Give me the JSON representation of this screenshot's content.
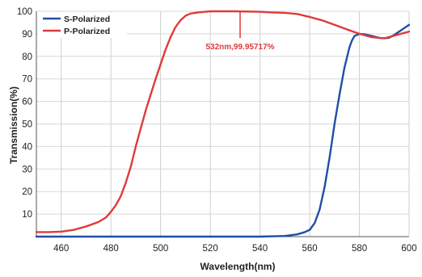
{
  "chart_data": {
    "type": "line",
    "xlabel": "Wavelength(nm)",
    "ylabel": "Transmission(%)",
    "xlim": [
      450,
      600
    ],
    "ylim": [
      0,
      100
    ],
    "x_ticks": [
      460,
      480,
      500,
      520,
      540,
      560,
      580,
      600
    ],
    "y_ticks": [
      10,
      20,
      30,
      40,
      50,
      60,
      70,
      80,
      90,
      100
    ],
    "grid": "vertical-and-horizontal",
    "legend": "top-left",
    "series": [
      {
        "name": "S-Polarized",
        "color": "#1f4fa8",
        "x": [
          450,
          500,
          540,
          550,
          555,
          558,
          560,
          562,
          564,
          566,
          568,
          570,
          572,
          574,
          576,
          577,
          578,
          579,
          580,
          582,
          584,
          586,
          588,
          590,
          592,
          594,
          596,
          598,
          600
        ],
        "y": [
          0,
          0,
          0,
          0.3,
          1,
          2,
          3,
          6,
          12,
          22,
          35,
          50,
          63,
          75,
          84,
          87,
          89,
          89.5,
          90,
          89.8,
          89.3,
          88.8,
          88.2,
          88,
          88.3,
          89.5,
          91,
          92.5,
          94
        ]
      },
      {
        "name": "P-Polarized",
        "color": "#e03a3a",
        "x": [
          450,
          455,
          460,
          465,
          470,
          475,
          478,
          480,
          482,
          484,
          486,
          488,
          490,
          492,
          494,
          496,
          498,
          500,
          502,
          504,
          506,
          508,
          510,
          512,
          515,
          520,
          530,
          540,
          545,
          550,
          555,
          560,
          565,
          570,
          575,
          580,
          585,
          590,
          595,
          600
        ],
        "y": [
          2,
          2,
          2.2,
          3,
          4.5,
          6.5,
          8.5,
          11,
          14,
          18,
          24,
          31,
          40,
          48,
          56,
          63,
          70,
          76.5,
          83,
          88.5,
          93,
          96,
          98,
          99,
          99.5,
          100,
          100,
          99.8,
          99.5,
          99.3,
          98.8,
          97.5,
          96,
          94,
          92,
          90,
          88.5,
          88,
          89.5,
          91
        ]
      }
    ],
    "annotations": [
      {
        "text": "532nm,99.95717%",
        "x": 532,
        "y": 99.95717,
        "color": "#e03a3a"
      }
    ]
  }
}
